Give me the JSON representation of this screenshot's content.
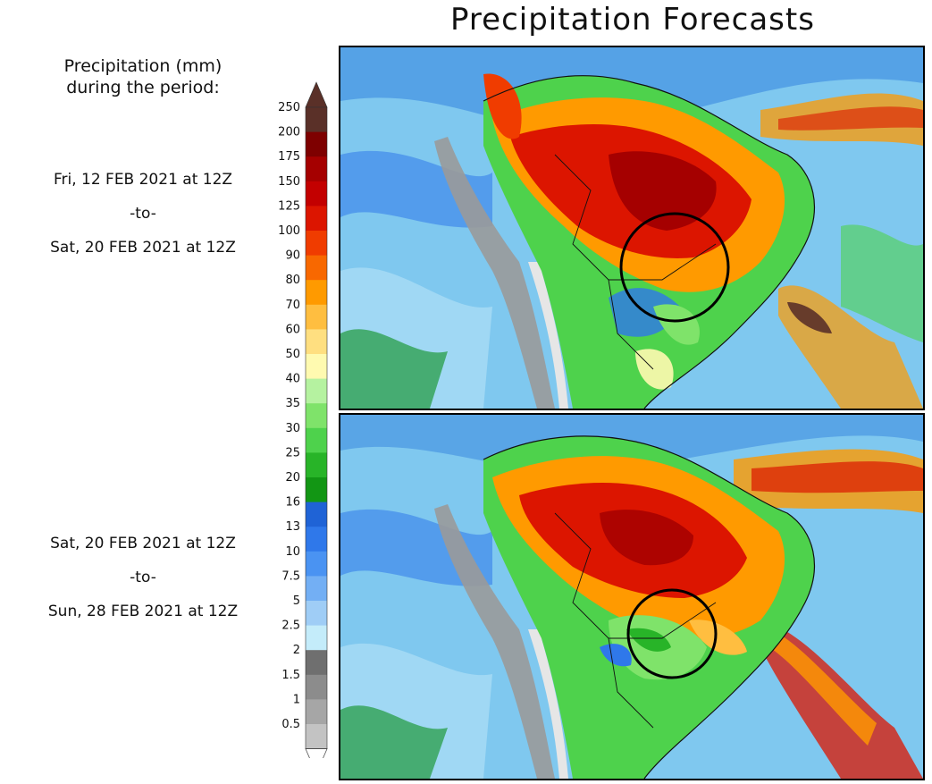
{
  "title": "Precipitation Forecasts",
  "legend": {
    "heading_line1": "Precipitation (mm)",
    "heading_line2": "during the period:",
    "labels": [
      "250",
      "200",
      "175",
      "150",
      "125",
      "100",
      "90",
      "80",
      "70",
      "60",
      "50",
      "40",
      "35",
      "30",
      "25",
      "20",
      "16",
      "13",
      "10",
      "7.5",
      "5",
      "2.5",
      "2",
      "1.5",
      "1",
      "0.5"
    ],
    "colors": [
      "#5a3028",
      "#7e0000",
      "#a50000",
      "#c30000",
      "#dc1500",
      "#f03c00",
      "#f86800",
      "#ff9a00",
      "#ffbe40",
      "#ffdf80",
      "#fffab0",
      "#b5f2a0",
      "#7fe36a",
      "#4ed24c",
      "#28b428",
      "#129614",
      "#1f63d6",
      "#2f78ea",
      "#4a93f2",
      "#73aff4",
      "#9fcdf6",
      "#c4ecfa",
      "#6f6f6f",
      "#8c8c8c",
      "#a6a6a6",
      "#c3c3c3"
    ],
    "bottom_arrow_color": "#ffffff",
    "top_arrow_color": "#5a3028"
  },
  "periods": [
    {
      "start": "Fri, 12 FEB 2021 at 12Z",
      "sep": "-to-",
      "end": "Sat, 20 FEB 2021 at 12Z"
    },
    {
      "start": "Sat, 20 FEB 2021 at 12Z",
      "sep": "-to-",
      "end": "Sun, 28 FEB 2021 at 12Z"
    }
  ],
  "maps": {
    "ocean_color": "#7fc8ef",
    "circle_color": "#000000"
  }
}
